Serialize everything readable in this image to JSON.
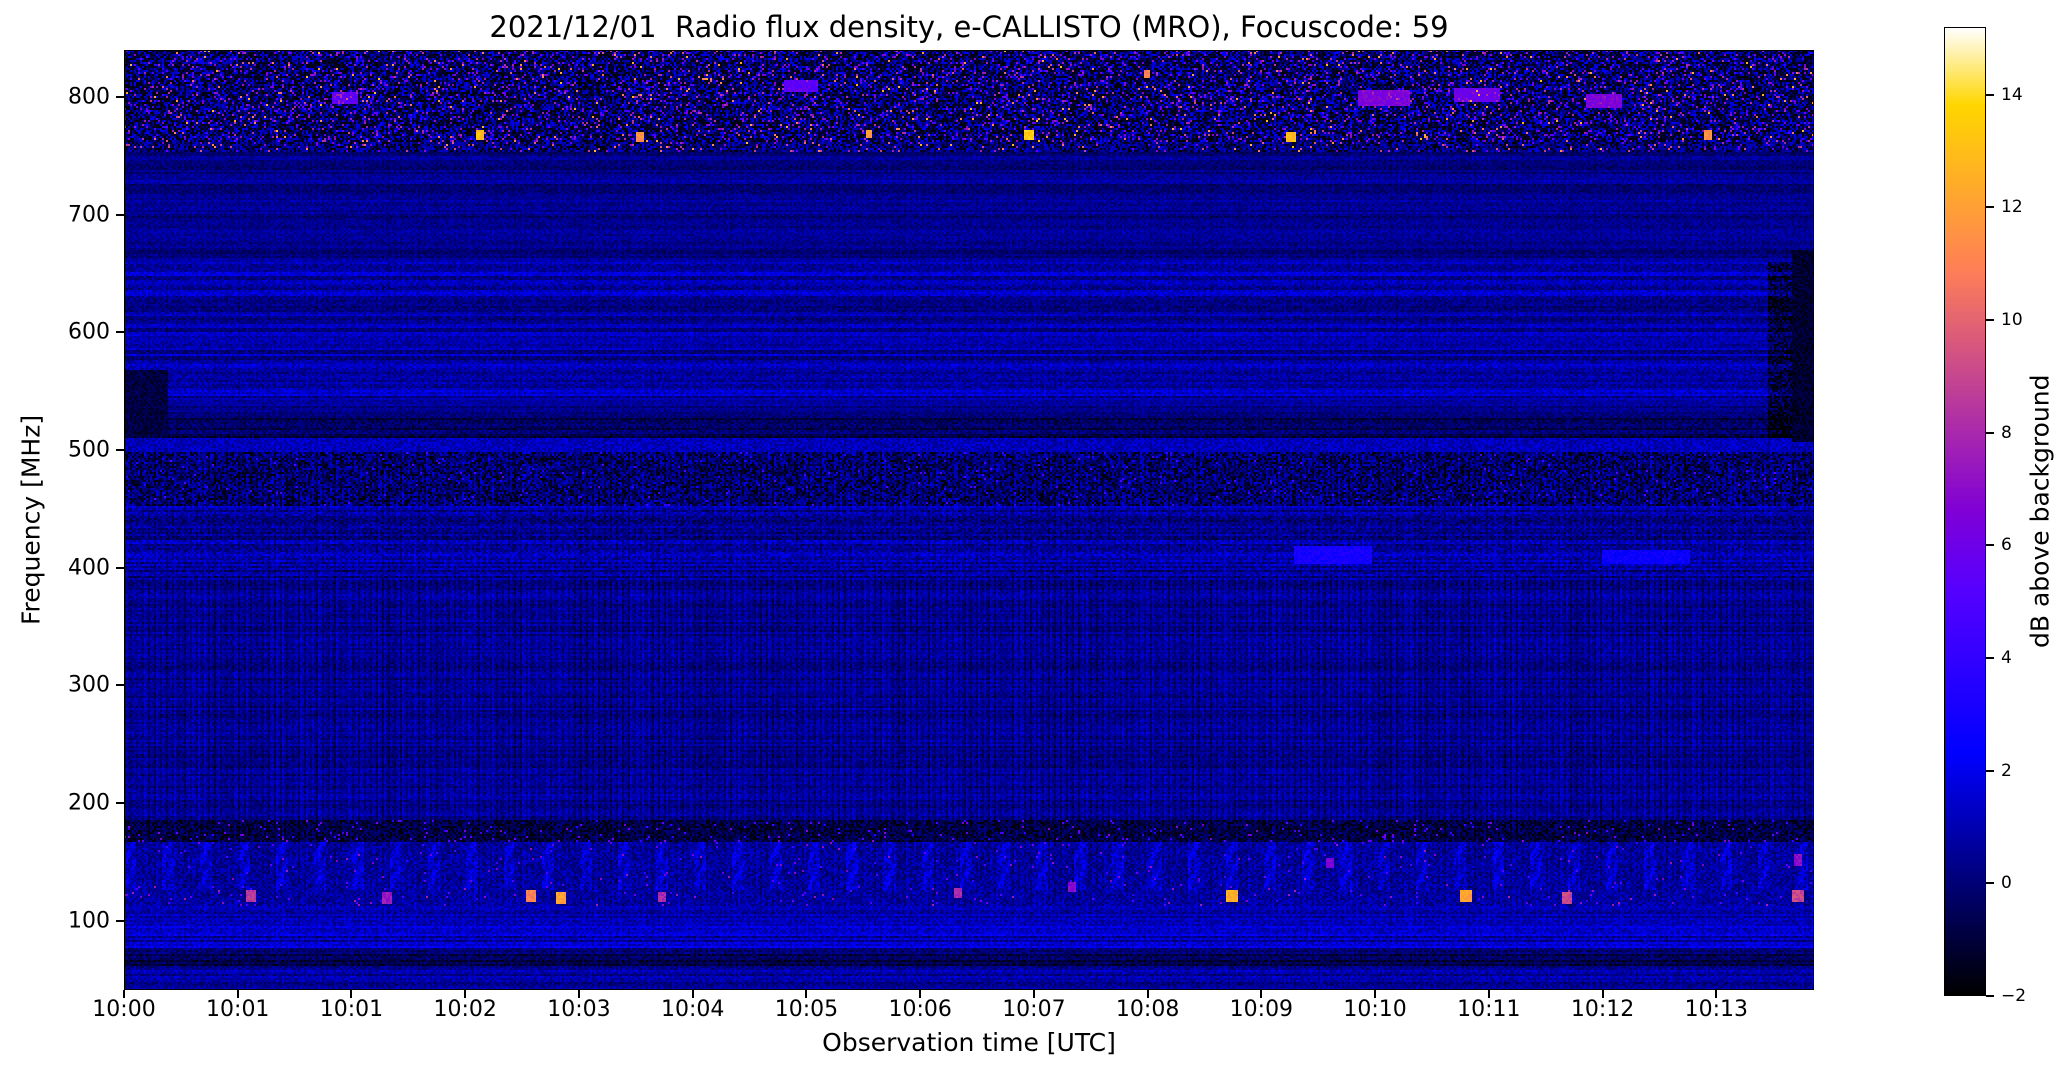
{
  "chart_data": {
    "type": "heatmap",
    "title": "2021/12/01  Radio flux density, e-CALLISTO (MRO), Focuscode: 59",
    "date": "2021/12/01",
    "instrument": "e-CALLISTO (MRO)",
    "focuscode": "59",
    "xlabel": "Observation time [UTC]",
    "ylabel": "Frequency [MHz]",
    "colorbar_label": "dB above background",
    "colormap": "gnuplot2",
    "x_tick_labels": [
      "10:00",
      "10:01",
      "10:01",
      "10:02",
      "10:03",
      "10:04",
      "10:05",
      "10:06",
      "10:07",
      "10:08",
      "10:09",
      "10:10",
      "10:11",
      "10:12",
      "10:13"
    ],
    "x_tick_step_frac": 0.0673,
    "y_tick_values": [
      100,
      200,
      300,
      400,
      500,
      600,
      700,
      800
    ],
    "y_range_mhz": [
      41,
      840
    ],
    "value_range_db": [
      -2,
      15.2
    ],
    "colorbar_ticks": [
      {
        "value": -2,
        "label": "−2"
      },
      {
        "value": 0,
        "label": "0"
      },
      {
        "value": 2,
        "label": "2"
      },
      {
        "value": 4,
        "label": "4"
      },
      {
        "value": 6,
        "label": "6"
      },
      {
        "value": 8,
        "label": "8"
      },
      {
        "value": 10,
        "label": "10"
      },
      {
        "value": 12,
        "label": "12"
      },
      {
        "value": 14,
        "label": "14"
      }
    ],
    "grid": {
      "cols": 845,
      "rows": 470,
      "seed": 20211201
    },
    "bands": [
      {
        "f": [
          762,
          840
        ],
        "base": 0.2,
        "noise": 2.2,
        "black_p": 0.28,
        "spike_p": 0.09,
        "spike": [
          4,
          8.5
        ],
        "hot_p": 0.012,
        "hot": [
          9,
          13
        ],
        "stripe": 0.3
      },
      {
        "f": [
          753,
          762
        ],
        "base": 0.6,
        "noise": 1.2,
        "black_p": 0.3,
        "spike_p": 0.05,
        "spike": [
          5,
          10
        ],
        "hot_p": 0.01,
        "hot": [
          10,
          13.5
        ],
        "stripe": 0.2
      },
      {
        "f": [
          660,
          753
        ],
        "base": 0.35,
        "noise": 0.55,
        "rowband": 0.3,
        "stripe": 0.12
      },
      {
        "f": [
          628,
          660
        ],
        "base": 1.05,
        "noise": 0.7,
        "rowband": 0.45,
        "stripe": 0.15,
        "right_dark": true
      },
      {
        "f": [
          576,
          628
        ],
        "base": 0.75,
        "noise": 0.65,
        "rowband": 0.45,
        "stripe": 0.15,
        "right_dark": true
      },
      {
        "f": [
          544,
          576
        ],
        "base": 1.0,
        "noise": 0.7,
        "rowband": 0.4,
        "stripe": 0.15,
        "right_dark": true
      },
      {
        "f": [
          527,
          544
        ],
        "base": 0.45,
        "noise": 0.55,
        "rowband": 0.3,
        "stripe": 0.1,
        "right_dark": true
      },
      {
        "f": [
          511,
          527
        ],
        "base": -0.55,
        "noise": 0.7,
        "rowband": 0.3,
        "stripe": 0.08,
        "right_dark": true
      },
      {
        "f": [
          499,
          511
        ],
        "base": 1.15,
        "noise": 0.8,
        "stripe": 0.15
      },
      {
        "f": [
          452,
          499
        ],
        "base": 0.15,
        "noise": 1.3,
        "black_p": 0.2,
        "spike_p": 0.015,
        "spike": [
          3,
          5.5
        ],
        "stripe": 0.55
      },
      {
        "f": [
          390,
          452
        ],
        "base": 0.65,
        "noise": 0.85,
        "rowband": 0.4,
        "stripe": 0.3
      },
      {
        "f": [
          185,
          390
        ],
        "base": 0.45,
        "noise": 0.6,
        "rowband": 0.25,
        "stripe": 0.55
      },
      {
        "f": [
          166,
          185
        ],
        "base": -0.85,
        "noise": 1.1,
        "spike_p": 0.03,
        "spike": [
          3.5,
          7
        ],
        "stripe": 0.25
      },
      {
        "f": [
          126,
          166
        ],
        "base": 0.6,
        "noise": 0.9,
        "burst": true,
        "spike_p": 0.01,
        "spike": [
          4,
          7.5
        ],
        "stripe": 0.3
      },
      {
        "f": [
          112,
          126
        ],
        "base": 0.7,
        "noise": 0.85,
        "spike_p": 0.018,
        "spike": [
          4,
          8
        ],
        "stripe": 0.25
      },
      {
        "f": [
          96,
          112
        ],
        "base": 1.0,
        "noise": 0.7,
        "rowband": 0.3,
        "stripe": 0.2
      },
      {
        "f": [
          76,
          96
        ],
        "base": 1.35,
        "noise": 0.75,
        "rowband": 0.5,
        "stripe": 0.15
      },
      {
        "f": [
          62,
          76
        ],
        "base": -0.35,
        "noise": 0.7,
        "rowband": 0.4,
        "stripe": 0.12
      },
      {
        "f": [
          41,
          62
        ],
        "base": 0.7,
        "noise": 0.7,
        "rowband": 0.3,
        "stripe": 0.12
      }
    ],
    "events": [
      {
        "t": 0.075,
        "f": 121,
        "dt": 0.005,
        "df": 7,
        "v": 8.5
      },
      {
        "t": 0.155,
        "f": 120,
        "dt": 0.004,
        "df": 6,
        "v": 7.5
      },
      {
        "t": 0.24,
        "f": 121,
        "dt": 0.005,
        "df": 7,
        "v": 11.0
      },
      {
        "t": 0.258,
        "f": 120,
        "dt": 0.004,
        "df": 6,
        "v": 12.0
      },
      {
        "t": 0.318,
        "f": 121,
        "dt": 0.004,
        "df": 6,
        "v": 8.0
      },
      {
        "t": 0.493,
        "f": 124,
        "dt": 0.004,
        "df": 6,
        "v": 8.0
      },
      {
        "t": 0.56,
        "f": 130,
        "dt": 0.004,
        "df": 5,
        "v": 7.0
      },
      {
        "t": 0.655,
        "f": 121,
        "dt": 0.006,
        "df": 7,
        "v": 12.5
      },
      {
        "t": 0.713,
        "f": 150,
        "dt": 0.004,
        "df": 5,
        "v": 6.5
      },
      {
        "t": 0.793,
        "f": 122,
        "dt": 0.006,
        "df": 7,
        "v": 12.0
      },
      {
        "t": 0.853,
        "f": 120,
        "dt": 0.005,
        "df": 6,
        "v": 9.0
      },
      {
        "t": 0.99,
        "f": 122,
        "dt": 0.005,
        "df": 7,
        "v": 9.0
      },
      {
        "t": 0.99,
        "f": 152,
        "dt": 0.004,
        "df": 6,
        "v": 7.0
      },
      {
        "t": 0.21,
        "f": 768,
        "dt": 0.004,
        "df": 5,
        "v": 13.0
      },
      {
        "t": 0.305,
        "f": 767,
        "dt": 0.003,
        "df": 4,
        "v": 11.5
      },
      {
        "t": 0.44,
        "f": 770,
        "dt": 0.003,
        "df": 4,
        "v": 12.0
      },
      {
        "t": 0.535,
        "f": 768,
        "dt": 0.004,
        "df": 5,
        "v": 13.5
      },
      {
        "t": 0.605,
        "f": 820,
        "dt": 0.003,
        "df": 4,
        "v": 11.0
      },
      {
        "t": 0.69,
        "f": 767,
        "dt": 0.004,
        "df": 5,
        "v": 13.0
      },
      {
        "t": 0.937,
        "f": 768,
        "dt": 0.003,
        "df": 5,
        "v": 11.5
      },
      {
        "t": 0.745,
        "f": 800,
        "dt": 0.03,
        "df": 10,
        "v": 6.5
      },
      {
        "t": 0.8,
        "f": 803,
        "dt": 0.025,
        "df": 8,
        "v": 6.0
      },
      {
        "t": 0.4,
        "f": 810,
        "dt": 0.02,
        "df": 8,
        "v": 5.5
      },
      {
        "t": 0.13,
        "f": 800,
        "dt": 0.015,
        "df": 8,
        "v": 5.5
      },
      {
        "t": 0.875,
        "f": 797,
        "dt": 0.02,
        "df": 9,
        "v": 6.5
      },
      {
        "t": 0.715,
        "f": 412,
        "dt": 0.045,
        "df": 12,
        "v": 3.0
      },
      {
        "t": 0.9,
        "f": 410,
        "dt": 0.05,
        "df": 8,
        "v": 2.6
      },
      {
        "t": 0.993,
        "f": 590,
        "dt": 0.012,
        "df": 160,
        "v": -1.2
      },
      {
        "t": 0.012,
        "f": 540,
        "dt": 0.025,
        "df": 55,
        "v": -0.9
      }
    ]
  }
}
